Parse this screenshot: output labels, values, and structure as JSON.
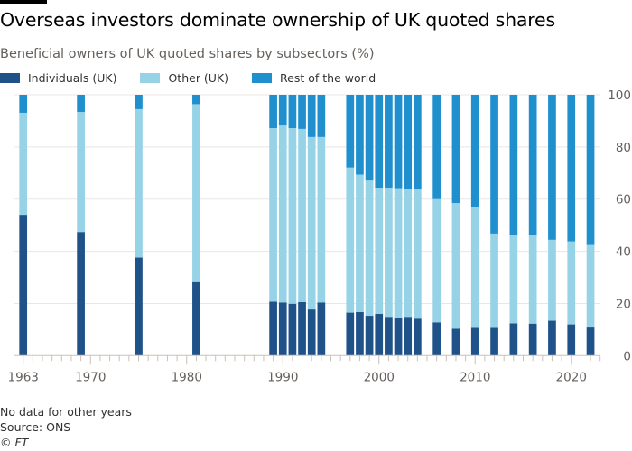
{
  "title": "Overseas investors dominate ownership of UK quoted shares",
  "subtitle": "Beneficial owners of UK quoted shares by subsectors (%)",
  "footer": {
    "note": "No data for other years",
    "source": "Source: ONS",
    "copyright": "© FT"
  },
  "colors": {
    "individuals": "#1f5289",
    "other": "#96d3e6",
    "row": "#1f8fcd",
    "grid": "#ebe6e2",
    "axis": "#ccc1b7"
  },
  "chart_data": {
    "type": "bar",
    "stacked": true,
    "title": "Overseas investors dominate ownership of UK quoted shares",
    "subtitle": "Beneficial owners of UK quoted shares by subsectors (%)",
    "xlabel": "",
    "ylabel": "",
    "ylim": [
      0,
      100
    ],
    "y_ticks": [
      0,
      20,
      40,
      60,
      80,
      100
    ],
    "y_axis_side": "right",
    "x_ticks": [
      1963,
      1970,
      1980,
      1990,
      2000,
      2010,
      2020
    ],
    "grid": true,
    "legend_placement": "top-left",
    "categories": [
      1963,
      1969,
      1975,
      1981,
      1989,
      1990,
      1991,
      1992,
      1993,
      1994,
      1997,
      1998,
      1999,
      2000,
      2001,
      2002,
      2003,
      2004,
      2006,
      2008,
      2010,
      2012,
      2014,
      2016,
      2018,
      2020,
      2022
    ],
    "series": [
      {
        "name": "Individuals (UK)",
        "color": "#1f5289",
        "values": [
          54.0,
          47.4,
          37.6,
          28.2,
          20.7,
          20.4,
          19.9,
          20.5,
          17.7,
          20.4,
          16.5,
          16.7,
          15.3,
          16.0,
          14.9,
          14.3,
          14.9,
          14.2,
          12.8,
          10.3,
          10.7,
          10.7,
          12.4,
          12.3,
          13.4,
          12.0,
          10.8
        ]
      },
      {
        "name": "Other (UK)",
        "color": "#96d3e6",
        "values": [
          39.1,
          46.0,
          56.9,
          68.2,
          66.5,
          67.8,
          67.3,
          66.4,
          66.1,
          63.4,
          55.6,
          52.7,
          51.8,
          48.4,
          49.5,
          49.9,
          49.0,
          49.5,
          47.2,
          48.2,
          46.3,
          36.1,
          34.0,
          33.8,
          31.0,
          31.8,
          31.6
        ]
      },
      {
        "name": "Rest of the world",
        "color": "#1f8fcd",
        "values": [
          6.9,
          6.6,
          5.5,
          3.6,
          12.8,
          11.8,
          12.8,
          13.1,
          16.2,
          16.2,
          27.9,
          30.6,
          32.9,
          35.6,
          35.6,
          35.8,
          36.1,
          36.3,
          40.0,
          41.5,
          43.0,
          53.2,
          53.6,
          53.9,
          55.6,
          56.2,
          57.6
        ]
      }
    ]
  }
}
